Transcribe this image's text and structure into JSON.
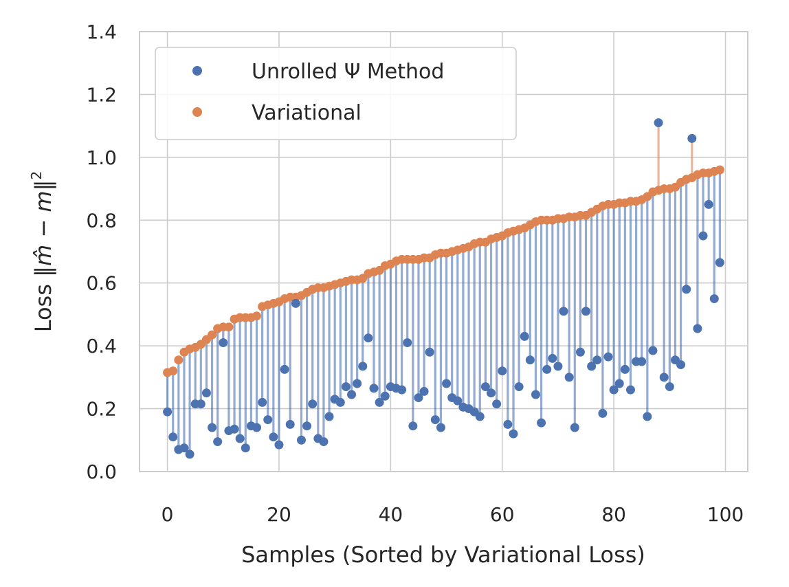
{
  "chart_data": {
    "type": "scatter",
    "title": "",
    "xlabel": "Samples (Sorted by Variational Loss)",
    "ylabel": {
      "prefix": "Loss ‖",
      "mhat": "m̂",
      "middle": " − ",
      "m": "m",
      "suffix": "‖",
      "sup": "2"
    },
    "xlim": [
      -5,
      104
    ],
    "ylim": [
      0,
      1.4
    ],
    "xticks": [
      0,
      20,
      40,
      60,
      80,
      100
    ],
    "yticks": [
      0.0,
      0.2,
      0.4,
      0.6,
      0.8,
      1.0,
      1.2,
      1.4
    ],
    "ytick_labels": [
      "0.0",
      "0.2",
      "0.4",
      "0.6",
      "0.8",
      "1.0",
      "1.2",
      "1.4"
    ],
    "grid": true,
    "legend_position": "top-left",
    "colors": {
      "unrolled": "#4c72b0",
      "variational": "#dd8452",
      "grid": "#cccccc",
      "axes": "#cccccc"
    },
    "x": [
      0,
      1,
      2,
      3,
      4,
      5,
      6,
      7,
      8,
      9,
      10,
      11,
      12,
      13,
      14,
      15,
      16,
      17,
      18,
      19,
      20,
      21,
      22,
      23,
      24,
      25,
      26,
      27,
      28,
      29,
      30,
      31,
      32,
      33,
      34,
      35,
      36,
      37,
      38,
      39,
      40,
      41,
      42,
      43,
      44,
      45,
      46,
      47,
      48,
      49,
      50,
      51,
      52,
      53,
      54,
      55,
      56,
      57,
      58,
      59,
      60,
      61,
      62,
      63,
      64,
      65,
      66,
      67,
      68,
      69,
      70,
      71,
      72,
      73,
      74,
      75,
      76,
      77,
      78,
      79,
      80,
      81,
      82,
      83,
      84,
      85,
      86,
      87,
      88,
      89,
      90,
      91,
      92,
      93,
      94,
      95,
      96,
      97,
      98,
      99
    ],
    "series": [
      {
        "name": "Unrolled Ψ Method",
        "values": [
          0.19,
          0.11,
          0.07,
          0.075,
          0.055,
          0.215,
          0.215,
          0.25,
          0.14,
          0.095,
          0.41,
          0.13,
          0.135,
          0.105,
          0.075,
          0.145,
          0.14,
          0.22,
          0.165,
          0.11,
          0.085,
          0.325,
          0.15,
          0.535,
          0.1,
          0.145,
          0.215,
          0.105,
          0.095,
          0.175,
          0.23,
          0.22,
          0.27,
          0.245,
          0.28,
          0.335,
          0.425,
          0.265,
          0.22,
          0.24,
          0.27,
          0.265,
          0.26,
          0.41,
          0.145,
          0.235,
          0.255,
          0.38,
          0.165,
          0.14,
          0.28,
          0.235,
          0.225,
          0.205,
          0.2,
          0.19,
          0.175,
          0.27,
          0.25,
          0.215,
          0.32,
          0.15,
          0.12,
          0.27,
          0.43,
          0.355,
          0.245,
          0.155,
          0.325,
          0.36,
          0.335,
          0.51,
          0.3,
          0.14,
          0.38,
          0.51,
          0.335,
          0.355,
          0.185,
          0.365,
          0.26,
          0.28,
          0.325,
          0.26,
          0.35,
          0.35,
          0.175,
          0.385,
          1.11,
          0.3,
          0.27,
          0.355,
          0.34,
          0.58,
          1.06,
          0.455,
          0.75,
          0.85,
          0.55,
          0.665
        ]
      },
      {
        "name": "Variational",
        "values": [
          0.315,
          0.32,
          0.355,
          0.38,
          0.39,
          0.395,
          0.405,
          0.42,
          0.435,
          0.455,
          0.46,
          0.46,
          0.485,
          0.49,
          0.49,
          0.49,
          0.495,
          0.525,
          0.53,
          0.535,
          0.54,
          0.55,
          0.555,
          0.555,
          0.56,
          0.57,
          0.58,
          0.585,
          0.585,
          0.59,
          0.595,
          0.6,
          0.605,
          0.61,
          0.61,
          0.615,
          0.63,
          0.635,
          0.64,
          0.655,
          0.66,
          0.67,
          0.675,
          0.675,
          0.675,
          0.675,
          0.68,
          0.68,
          0.69,
          0.695,
          0.695,
          0.7,
          0.705,
          0.71,
          0.715,
          0.725,
          0.73,
          0.73,
          0.74,
          0.745,
          0.75,
          0.76,
          0.765,
          0.77,
          0.775,
          0.785,
          0.795,
          0.8,
          0.8,
          0.8,
          0.805,
          0.805,
          0.81,
          0.81,
          0.815,
          0.815,
          0.825,
          0.835,
          0.845,
          0.85,
          0.85,
          0.855,
          0.855,
          0.86,
          0.86,
          0.865,
          0.875,
          0.89,
          0.895,
          0.9,
          0.9,
          0.905,
          0.92,
          0.93,
          0.935,
          0.945,
          0.95,
          0.95,
          0.955,
          0.96
        ]
      }
    ]
  }
}
